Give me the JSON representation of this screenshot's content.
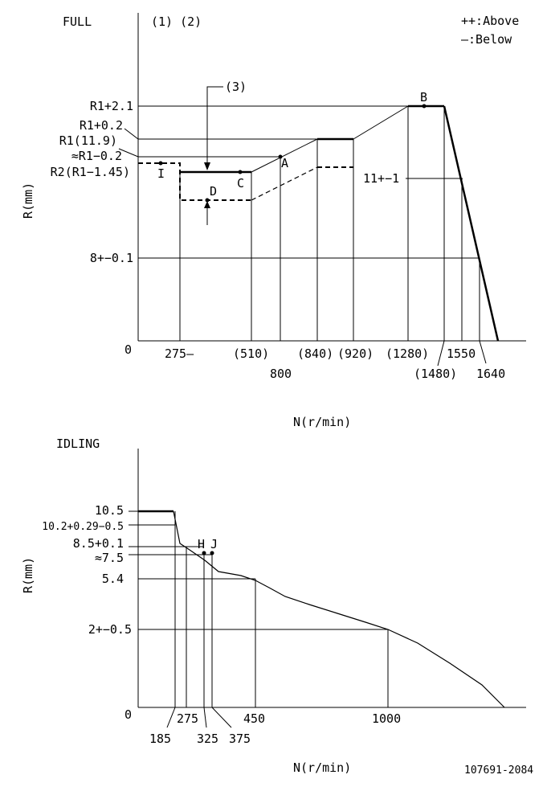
{
  "full": {
    "title": "FULL",
    "notes": "(1) (2)",
    "legend_above": "++:Above",
    "legend_below": "—:Below",
    "callout": "(3)",
    "y_axis_label": "R(mm)",
    "x_axis_label": "N(r/min)",
    "y_labels": {
      "r1_plus_2_1": "R1+2.1",
      "r1_plus_0_2": "R1+0.2",
      "r1_11_9": "R1(11.9)",
      "r1_minus_0_2": "≈R1−0.2",
      "r2": "R2(R1−1.45)",
      "eight": "8+−0.1",
      "zero": "0"
    },
    "x_labels": {
      "n275": "275—",
      "n510": "(510)",
      "n800": "800",
      "n840": "(840)",
      "n920": "(920)",
      "n1280": "(1280)",
      "n1480": "(1480)",
      "n1550": "1550",
      "n1640": "1640"
    },
    "point_labels": {
      "A": "A",
      "B": "B",
      "C": "C",
      "D": "D",
      "I": "I"
    },
    "annotation_11": "11+−1"
  },
  "idling": {
    "title": "IDLING",
    "y_axis_label": "R(mm)",
    "x_axis_label": "N(r/min)",
    "y_labels": {
      "y10_5": "10.5",
      "y10_2": "10.2+0.29−0.5",
      "y8_5": "8.5+0.1",
      "y7_5": "≈7.5",
      "y5_4": "5.4",
      "y2": "2+−0.5",
      "zero": "0"
    },
    "x_labels": {
      "n185": "185",
      "n275": "275",
      "n325": "325",
      "n375": "375",
      "n450": "450",
      "n1000": "1000"
    },
    "point_labels": {
      "H": "H",
      "J": "J"
    }
  },
  "doc_number": "107691-2084"
}
